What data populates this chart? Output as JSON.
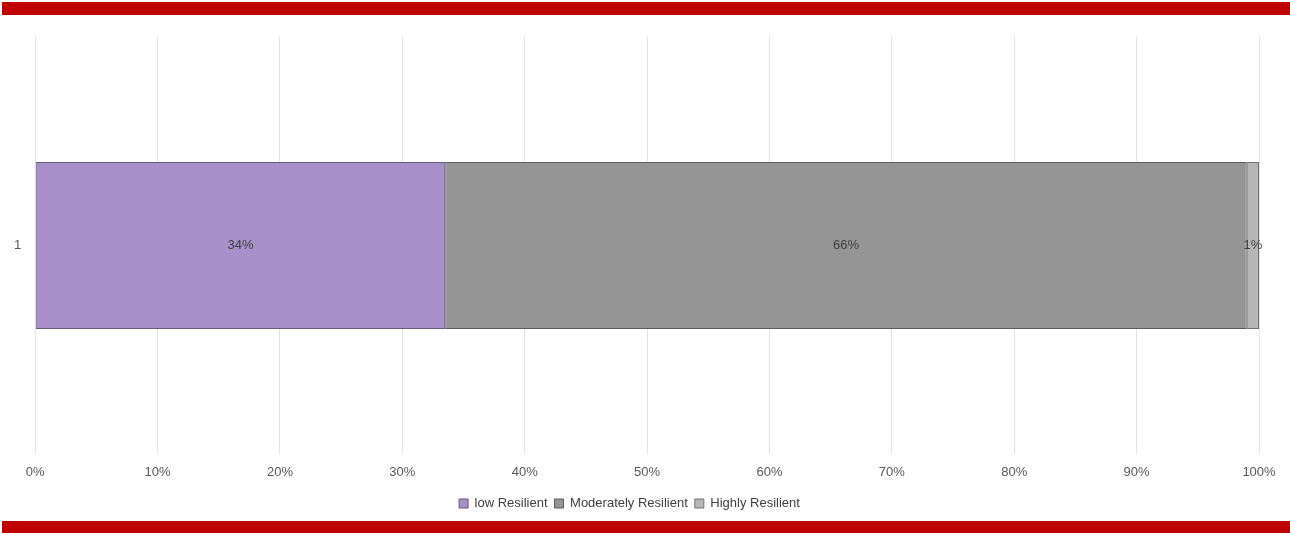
{
  "chart_data": {
    "type": "bar",
    "orientation": "horizontal",
    "stacked": true,
    "categories": [
      "1"
    ],
    "series": [
      {
        "name": "low Resilient",
        "color": "#a891c8",
        "values": [
          33.5
        ],
        "value_labels": [
          "34%"
        ]
      },
      {
        "name": "Moderately Resilient",
        "color": "#959595",
        "values": [
          65.5
        ],
        "value_labels": [
          "66%"
        ]
      },
      {
        "name": "Highly Resilient",
        "color": "#b6b6b6",
        "values": [
          1
        ],
        "value_labels": [
          "1%"
        ]
      }
    ],
    "xlim": [
      0,
      100
    ],
    "xticks": [
      {
        "value": 0,
        "label": "0%"
      },
      {
        "value": 10,
        "label": "10%"
      },
      {
        "value": 20,
        "label": "20%"
      },
      {
        "value": 30,
        "label": "30%"
      },
      {
        "value": 40,
        "label": "40%"
      },
      {
        "value": 50,
        "label": "50%"
      },
      {
        "value": 60,
        "label": "60%"
      },
      {
        "value": 70,
        "label": "70%"
      },
      {
        "value": 80,
        "label": "80%"
      },
      {
        "value": 90,
        "label": "90%"
      },
      {
        "value": 100,
        "label": "100%"
      }
    ],
    "grid": "x",
    "legend": "bottom"
  }
}
